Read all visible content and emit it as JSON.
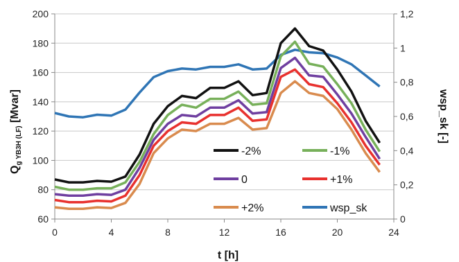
{
  "chart_data": {
    "type": "line",
    "xlabel": "t [h]",
    "ylabel": "Qg YB3H (LF) [Mvar]",
    "ylabel_main": "Q",
    "ylabel_sub": "g YB3H (LF)",
    "ylabel_unit": " [Mvar]",
    "y2label": "wsp_sk [-]",
    "xlim": [
      0,
      24
    ],
    "ylim": [
      60,
      200
    ],
    "y2lim": [
      0,
      1.2
    ],
    "x_ticks": [
      "0",
      "4",
      "8",
      "12",
      "16",
      "20",
      "24"
    ],
    "y_ticks": [
      "60",
      "80",
      "100",
      "120",
      "140",
      "160",
      "180",
      "200"
    ],
    "y2_ticks": [
      "0",
      "0,2",
      "0,4",
      "0,6",
      "0,8",
      "1",
      "1,2"
    ],
    "grid": "horizontal",
    "legend_placement": "bottom-right, inside, 2 columns",
    "x": [
      0,
      1,
      2,
      3,
      4,
      5,
      6,
      7,
      8,
      9,
      10,
      11,
      12,
      13,
      14,
      15,
      16,
      17,
      18,
      19,
      20,
      21,
      22,
      23
    ],
    "series": [
      {
        "name": "-2%",
        "axis": "left",
        "color": "#111111",
        "values": [
          87,
          85,
          85,
          86,
          85.5,
          89,
          104,
          125,
          137,
          144,
          142.5,
          149.5,
          149.5,
          154,
          144.5,
          146,
          180,
          190,
          178,
          175,
          162,
          147,
          127,
          112
        ]
      },
      {
        "name": "-1%",
        "axis": "left",
        "color": "#77b05a",
        "values": [
          82,
          80,
          80,
          81,
          81,
          85,
          99,
          118,
          131,
          138,
          136,
          142,
          142,
          147,
          138,
          139,
          171,
          181,
          166,
          164,
          152,
          139,
          121,
          106
        ]
      },
      {
        "name": "0",
        "axis": "left",
        "color": "#6f3fa0",
        "values": [
          77,
          76,
          76,
          77,
          76.5,
          80,
          95,
          114,
          125,
          131,
          130,
          136,
          136,
          141,
          132,
          133,
          163,
          170,
          158,
          157,
          145,
          132,
          116,
          101
        ]
      },
      {
        "name": "+1%",
        "axis": "left",
        "color": "#e8312e",
        "values": [
          73,
          71.5,
          71.5,
          72.5,
          72,
          76,
          90,
          110,
          120,
          126,
          125,
          131,
          131,
          136,
          127,
          128,
          157,
          162,
          152,
          150,
          139,
          126,
          110,
          97
        ]
      },
      {
        "name": "+2%",
        "axis": "left",
        "color": "#d98b4e",
        "values": [
          68,
          67,
          67,
          68,
          67.5,
          71,
          84,
          105,
          115,
          121,
          120,
          125,
          125,
          129,
          121,
          122,
          146,
          154,
          146,
          144,
          135,
          121,
          105,
          92
        ]
      },
      {
        "name": "wsp_sk",
        "axis": "right",
        "color": "#2f75b5",
        "values": [
          0.62,
          0.6,
          0.595,
          0.61,
          0.605,
          0.64,
          0.74,
          0.83,
          0.865,
          0.88,
          0.875,
          0.89,
          0.89,
          0.905,
          0.875,
          0.88,
          0.96,
          0.99,
          0.975,
          0.97,
          0.945,
          0.905,
          0.84,
          0.775
        ]
      }
    ]
  }
}
